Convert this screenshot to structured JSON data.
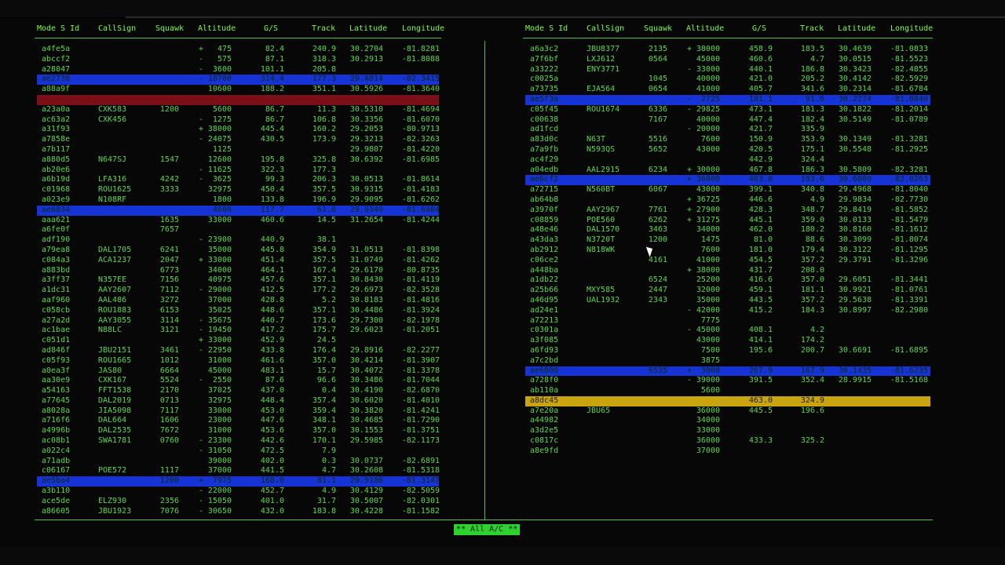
{
  "columns": [
    "Mode S Id",
    "CallSign",
    "Squawk",
    "Altitude",
    "G/S",
    "Track",
    "Latitude",
    "Longitude"
  ],
  "left": [
    [
      "a4fe5a",
      "",
      "",
      "+",
      "475",
      "82.4",
      "240.9",
      "30.2704",
      "-81.8281",
      ""
    ],
    [
      "abccf2",
      "",
      "",
      "-",
      "575",
      "87.1",
      "318.3",
      "30.2913",
      "-81.8088",
      ""
    ],
    [
      "a28047",
      "",
      "",
      "-",
      "3600",
      "101.1",
      "205.8",
      "",
      "",
      ""
    ],
    [
      "ae2730",
      "",
      "",
      "-",
      "18700",
      "314.4",
      "177.3",
      "29.4814",
      "-82.3415",
      "sel"
    ],
    [
      "a88a9f",
      "",
      "",
      "",
      "10600",
      "188.2",
      "351.1",
      "30.5926",
      "-81.3640",
      ""
    ],
    [
      "",
      "",
      "",
      "",
      "",
      "",
      "",
      "",
      "",
      "alert"
    ],
    [
      "a23a0a",
      "CXK583",
      "1200",
      "",
      "5600",
      "86.7",
      "11.3",
      "30.5310",
      "-81.4694",
      ""
    ],
    [
      "ac63a2",
      "CXK456",
      "",
      "-",
      "1275",
      "86.7",
      "106.8",
      "30.3356",
      "-81.6070",
      ""
    ],
    [
      "a31f93",
      "",
      "",
      "+",
      "38000",
      "445.4",
      "160.2",
      "29.2053",
      "-80.9713",
      ""
    ],
    [
      "a7858e",
      "",
      "",
      "-",
      "24075",
      "430.5",
      "173.9",
      "29.3213",
      "-82.3263",
      ""
    ],
    [
      "a7b117",
      "",
      "",
      "",
      "1125",
      "",
      "",
      "29.9807",
      "-81.4220",
      ""
    ],
    [
      "a880d5",
      "N647SJ",
      "1547",
      "",
      "12600",
      "195.8",
      "325.8",
      "30.6392",
      "-81.6985",
      ""
    ],
    [
      "ab20e6",
      "",
      "",
      "-",
      "11625",
      "322.3",
      "177.3",
      "",
      "",
      ""
    ],
    [
      "a6b19d",
      "LFA316",
      "4242",
      "-",
      "3625",
      "99.3",
      "206.3",
      "30.0513",
      "-81.8614",
      ""
    ],
    [
      "c01968",
      "ROU1625",
      "3333",
      "",
      "32975",
      "450.4",
      "357.5",
      "30.9315",
      "-81.4183",
      ""
    ],
    [
      "a023e9",
      "N108RF",
      "",
      "",
      "1800",
      "133.8",
      "196.9",
      "29.9095",
      "-81.6262",
      ""
    ],
    [
      "ae6834",
      "",
      "",
      "",
      "4600",
      "117.7",
      "61.0",
      "29.9349",
      "-81.6984",
      "sel"
    ],
    [
      "aaa621",
      "",
      "1635",
      "",
      "33000",
      "460.6",
      "14.5",
      "31.2654",
      "-81.4244",
      ""
    ],
    [
      "a6fe0f",
      "",
      "7657",
      "",
      "",
      "",
      "",
      "",
      "",
      ""
    ],
    [
      "adf190",
      "",
      "",
      "-",
      "23900",
      "440.9",
      "38.1",
      "",
      "",
      ""
    ],
    [
      "a79ea8",
      "DAL1705",
      "6241",
      "",
      "35000",
      "445.8",
      "354.9",
      "31.0513",
      "-81.8398",
      ""
    ],
    [
      "c084a3",
      "ACA1237",
      "2047",
      "+",
      "33000",
      "451.4",
      "357.5",
      "31.0749",
      "-81.4262",
      ""
    ],
    [
      "a883bd",
      "",
      "6773",
      "",
      "34000",
      "464.1",
      "167.4",
      "29.6170",
      "-80.8735",
      ""
    ],
    [
      "a3ff37",
      "N357EE",
      "7156",
      "",
      "40975",
      "457.6",
      "357.1",
      "30.8430",
      "-81.4119",
      ""
    ],
    [
      "a1dc31",
      "AAY2607",
      "7112",
      "-",
      "29000",
      "412.5",
      "177.2",
      "29.6973",
      "-82.3528",
      ""
    ],
    [
      "aaf960",
      "AAL486",
      "3272",
      "",
      "37000",
      "428.8",
      "5.2",
      "30.8183",
      "-81.4816",
      ""
    ],
    [
      "c058cb",
      "ROU1883",
      "6153",
      "",
      "35025",
      "448.6",
      "357.1",
      "30.4486",
      "-81.3924",
      ""
    ],
    [
      "a27a2d",
      "AAY3055",
      "3114",
      "-",
      "35675",
      "440.7",
      "173.6",
      "29.7300",
      "-82.1978",
      ""
    ],
    [
      "ac1bae",
      "N88LC",
      "3121",
      "-",
      "19450",
      "417.2",
      "175.7",
      "29.6023",
      "-81.2051",
      ""
    ],
    [
      "c051d1",
      "",
      "",
      "+",
      "33000",
      "452.9",
      "24.5",
      "",
      "",
      ""
    ],
    [
      "ad846f",
      "JBU2151",
      "3461",
      "-",
      "22950",
      "433.8",
      "176.4",
      "29.8916",
      "-82.2277",
      ""
    ],
    [
      "c05f93",
      "ROU1665",
      "1012",
      "",
      "31000",
      "461.6",
      "357.0",
      "30.4214",
      "-81.3907",
      ""
    ],
    [
      "a0ea3f",
      "JAS80",
      "6664",
      "",
      "45000",
      "483.1",
      "15.7",
      "30.4072",
      "-81.3378",
      ""
    ],
    [
      "aa30e9",
      "CXK167",
      "5524",
      "-",
      "2550",
      "87.6",
      "96.6",
      "30.3486",
      "-81.7044",
      ""
    ],
    [
      "a54163",
      "FFT1538",
      "2170",
      "",
      "37025",
      "437.0",
      "0.4",
      "30.4190",
      "-82.6870",
      ""
    ],
    [
      "a77645",
      "DAL2019",
      "0713",
      "",
      "32975",
      "448.4",
      "357.4",
      "30.6020",
      "-81.4010",
      ""
    ],
    [
      "a8028a",
      "JIA5098",
      "7117",
      "",
      "33000",
      "453.0",
      "359.4",
      "30.3820",
      "-81.4241",
      ""
    ],
    [
      "a716f6",
      "DAL664",
      "1606",
      "",
      "23000",
      "447.6",
      "348.1",
      "30.4685",
      "-81.7290",
      ""
    ],
    [
      "a4996b",
      "DAL2535",
      "7672",
      "",
      "31000",
      "453.6",
      "357.0",
      "30.1553",
      "-81.3751",
      ""
    ],
    [
      "ac08b1",
      "SWA1781",
      "0760",
      "-",
      "23300",
      "442.6",
      "170.1",
      "29.5985",
      "-82.1173",
      ""
    ],
    [
      "a022c4",
      "",
      "",
      "-",
      "31050",
      "472.5",
      "7.9",
      "",
      "",
      ""
    ],
    [
      "a71adb",
      "",
      "",
      "",
      "39000",
      "402.0",
      "0.3",
      "30.0737",
      "-82.6891",
      ""
    ],
    [
      "c06167",
      "POE572",
      "1117",
      "",
      "37000",
      "441.5",
      "4.7",
      "30.2608",
      "-81.5318",
      ""
    ],
    [
      "ae5ba4",
      "",
      "1200",
      "+",
      "7975",
      "168.0",
      "81.1",
      "29.9186",
      "-81.3147",
      "sel"
    ],
    [
      "a3b110",
      "",
      "",
      "-",
      "22000",
      "452.7",
      "4.9",
      "30.4129",
      "-82.5059",
      ""
    ],
    [
      "ace5de",
      "ELZ930",
      "2356",
      "-",
      "15050",
      "401.0",
      "31.7",
      "30.5007",
      "-82.0301",
      ""
    ],
    [
      "a86605",
      "JBU1923",
      "7076",
      "-",
      "30650",
      "432.0",
      "183.8",
      "30.4228",
      "-81.1582",
      ""
    ]
  ],
  "right": [
    [
      "a6a3c2",
      "JBU8377",
      "2135",
      "+",
      "38000",
      "458.9",
      "183.5",
      "30.4639",
      "-81.0833",
      ""
    ],
    [
      "a7f6bf",
      "LXJ612",
      "0564",
      "",
      "45000",
      "460.6",
      "4.7",
      "30.0515",
      "-81.5523",
      ""
    ],
    [
      "a33222",
      "ENY3771",
      "",
      "-",
      "33000",
      "440.1",
      "186.8",
      "30.3423",
      "-82.4855",
      ""
    ],
    [
      "c0025a",
      "",
      "1045",
      "",
      "40000",
      "421.0",
      "205.2",
      "30.4142",
      "-82.5929",
      ""
    ],
    [
      "a73735",
      "EJA564",
      "0654",
      "",
      "41000",
      "405.7",
      "341.6",
      "30.2314",
      "-81.6784",
      ""
    ],
    [
      "ae5f3a",
      "",
      "",
      "-",
      "2725",
      "181.1",
      "91.6",
      "30.2274",
      "-81.8840",
      "sel"
    ],
    [
      "c05f45",
      "ROU1674",
      "6336",
      "-",
      "29825",
      "473.1",
      "181.3",
      "30.1822",
      "-81.2014",
      ""
    ],
    [
      "c00638",
      "",
      "7167",
      "",
      "40000",
      "447.4",
      "182.4",
      "30.5149",
      "-81.0789",
      ""
    ],
    [
      "ad1fcd",
      "",
      "",
      "-",
      "20000",
      "421.7",
      "335.9",
      "",
      "",
      ""
    ],
    [
      "a83d0c",
      "N63T",
      "5516",
      "",
      "7600",
      "150.9",
      "353.9",
      "30.1349",
      "-81.3281",
      ""
    ],
    [
      "a7a9fb",
      "N593QS",
      "5652",
      "",
      "43000",
      "420.5",
      "175.1",
      "30.5548",
      "-81.2925",
      ""
    ],
    [
      "ac4f29",
      "",
      "",
      "",
      "",
      "442.9",
      "324.4",
      "",
      "",
      ""
    ],
    [
      "a04edb",
      "AAL2915",
      "6234",
      "+",
      "30000",
      "467.8",
      "186.3",
      "30.5809",
      "-82.3281",
      ""
    ],
    [
      "ae6cf2",
      "",
      "",
      "+",
      "36000",
      "463.0",
      "193.6",
      "30.6809",
      "-82.0263",
      "sel"
    ],
    [
      "a72715",
      "N560BT",
      "6067",
      "",
      "43000",
      "399.1",
      "340.8",
      "29.4968",
      "-81.8040",
      ""
    ],
    [
      "ab64b8",
      "",
      "",
      "+",
      "36725",
      "446.6",
      "4.9",
      "29.9834",
      "-82.7730",
      ""
    ],
    [
      "a3970f",
      "AAY2967",
      "7761",
      "+",
      "27900",
      "428.3",
      "348.7",
      "29.8419",
      "-81.5852",
      ""
    ],
    [
      "c08859",
      "POE560",
      "6262",
      "+",
      "31275",
      "445.1",
      "359.0",
      "30.0133",
      "-81.5479",
      ""
    ],
    [
      "a48e46",
      "DAL1570",
      "3463",
      "",
      "34000",
      "462.0",
      "180.2",
      "30.8160",
      "-81.1612",
      ""
    ],
    [
      "a43da3",
      "N3720T",
      "1200",
      "",
      "1475",
      "81.0",
      "88.6",
      "30.3099",
      "-81.8074",
      ""
    ],
    [
      "ab2912",
      "N818WK",
      "",
      "",
      "7600",
      "181.0",
      "179.4",
      "30.3122",
      "-81.1295",
      ""
    ],
    [
      "c06ce2",
      "",
      "4161",
      "",
      "41000",
      "454.5",
      "357.2",
      "29.3791",
      "-81.3296",
      ""
    ],
    [
      "a448ba",
      "",
      "",
      "+",
      "38000",
      "431.7",
      "208.0",
      "",
      "",
      ""
    ],
    [
      "a1db22",
      "",
      "6524",
      "",
      "25200",
      "416.6",
      "357.0",
      "29.6051",
      "-81.3441",
      ""
    ],
    [
      "a25b66",
      "MXY585",
      "2447",
      "",
      "32000",
      "459.1",
      "181.1",
      "30.9921",
      "-81.0761",
      ""
    ],
    [
      "a46d95",
      "UAL1932",
      "2343",
      "",
      "35000",
      "443.5",
      "357.2",
      "29.5638",
      "-81.3391",
      ""
    ],
    [
      "ad24e1",
      "",
      "",
      "-",
      "42000",
      "415.2",
      "184.3",
      "30.8997",
      "-82.2980",
      ""
    ],
    [
      "a72213",
      "",
      "",
      "",
      "7775",
      "",
      "",
      "",
      "",
      ""
    ],
    [
      "c0301a",
      "",
      "",
      "-",
      "45000",
      "408.1",
      "4.2",
      "",
      "",
      ""
    ],
    [
      "a3f085",
      "",
      "",
      "",
      "43000",
      "414.1",
      "174.2",
      "",
      "",
      ""
    ],
    [
      "a6fd93",
      "",
      "",
      "",
      "7500",
      "195.6",
      "200.7",
      "30.6691",
      "-81.6895",
      ""
    ],
    [
      "a7c2bd",
      "",
      "",
      "",
      "3875",
      "",
      "",
      "",
      "",
      ""
    ],
    [
      "ae6800",
      "",
      "6535",
      "+",
      "3000",
      "267.9",
      "167.9",
      "30.1435",
      "-81.6235",
      "sel"
    ],
    [
      "a728f0",
      "",
      "",
      "-",
      "39000",
      "391.5",
      "352.4",
      "28.9915",
      "-81.5168",
      ""
    ],
    [
      "ab110a",
      "",
      "",
      "",
      "5600",
      "",
      "",
      "",
      "",
      ""
    ],
    [
      "a8dc45",
      "",
      "",
      "",
      "",
      "463.0",
      "324.9",
      "",
      "",
      "warn"
    ],
    [
      "a7e20a",
      "JBU65",
      "",
      "",
      "36000",
      "445.5",
      "196.6",
      "",
      "",
      ""
    ],
    [
      "a44982",
      "",
      "",
      "",
      "34000",
      "",
      "",
      "",
      "",
      ""
    ],
    [
      "a3d2e5",
      "",
      "",
      "",
      "33000",
      "",
      "",
      "",
      "",
      ""
    ],
    [
      "c0817c",
      "",
      "",
      "",
      "36000",
      "433.3",
      "325.2",
      "",
      "",
      ""
    ],
    [
      "a8e9fd",
      "",
      "",
      "",
      "37000",
      "",
      "",
      "",
      "",
      ""
    ]
  ],
  "status_label": "** All A/C **",
  "colors": {
    "text": "#5fd84f",
    "header": "#7CFF3F",
    "selected_row": "#1633d6",
    "alert_row": "#7a0f18",
    "warn_row": "#c8a40f",
    "background": "#070707"
  }
}
